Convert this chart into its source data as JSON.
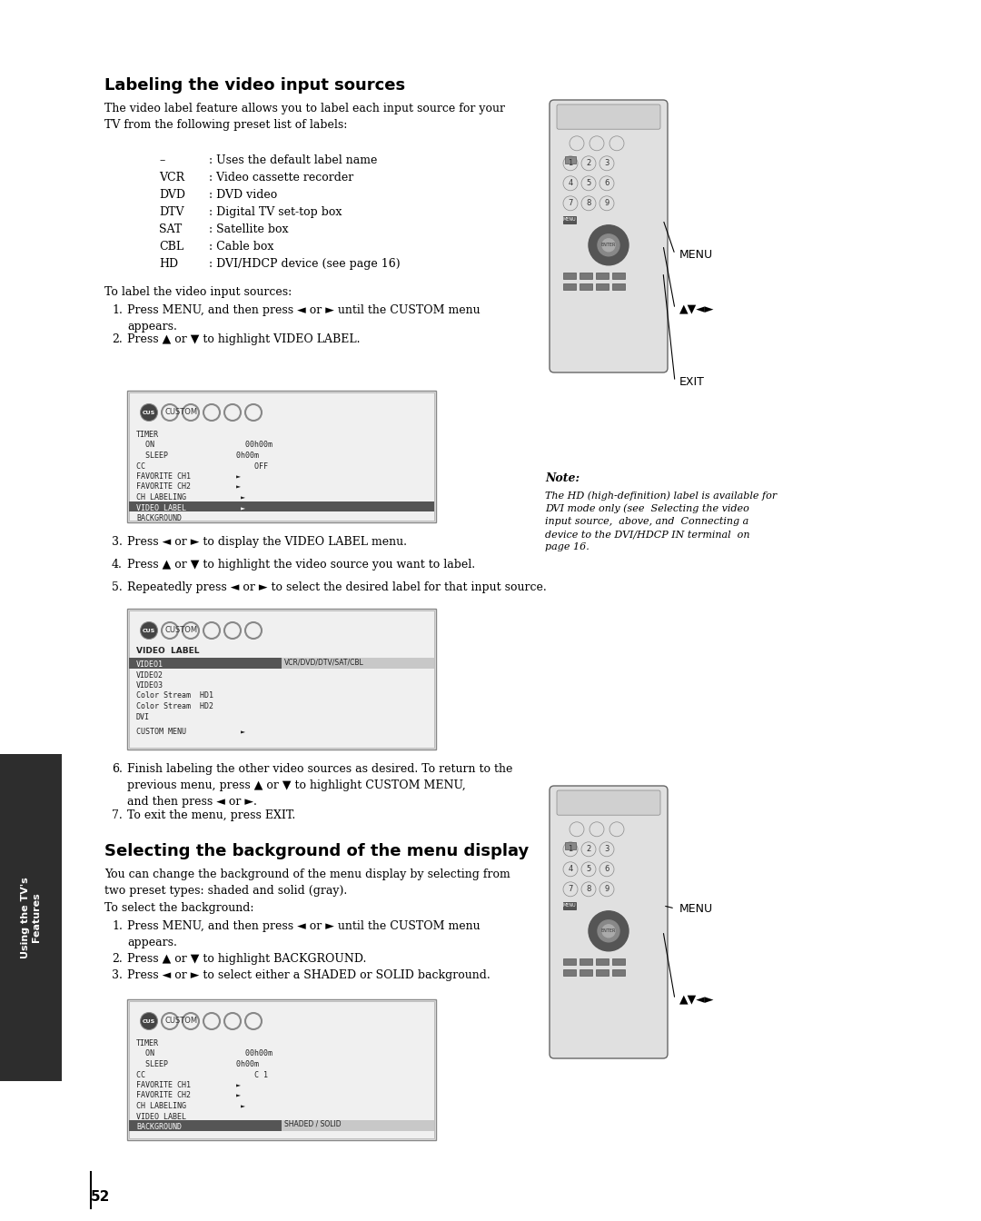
{
  "page_bg": "#ffffff",
  "page_number": "52",
  "sidebar_bg": "#2d2d2d",
  "sidebar_text": "Using the TV's\nFeatures",
  "sidebar_text_color": "#ffffff",
  "section1_title": "Labeling the video input sources",
  "section1_intro": "The video label feature allows you to label each input source for your\nTV from the following preset list of labels:",
  "labels_list": [
    [
      "–",
      ": Uses the default label name"
    ],
    [
      "VCR",
      ": Video cassette recorder"
    ],
    [
      "DVD",
      ": DVD video"
    ],
    [
      "DTV",
      ": Digital TV set-top box"
    ],
    [
      "SAT",
      ": Satellite box"
    ],
    [
      "CBL",
      ": Cable box"
    ],
    [
      "HD",
      ": DVI/HDCP device (see page 16)"
    ]
  ],
  "steps1_intro": "To label the video input sources:",
  "steps1": [
    "Press MENU, and then press ◄ or ► until the CUSTOM menu\nappears.",
    "Press ▲ or ▼ to highlight VIDEO LABEL.",
    "Press ◄ or ► to display the VIDEO LABEL menu.",
    "Press ▲ or ▼ to highlight the video source you want to label.",
    "Repeatedly press ◄ or ► to select the desired label for that input source.",
    "Finish labeling the other video sources as desired. To return to the\nprevious menu, press ▲ or ▼ to highlight CUSTOM MENU,\nand then press ◄ or ►.",
    "To exit the menu, press EXIT."
  ],
  "note_title": "Note:",
  "note_text": "The HD (high-definition) label is available for\nDVI mode only (see  Selecting the video\ninput source,  above, and  Connecting a\ndevice to the DVI/HDCP IN terminal  on\npage 16.",
  "menu_screen1_title": "CUSTOM",
  "menu_screen1_lines": [
    "TIMER",
    "  ON                    00h00m",
    "  SLEEP               0h00m",
    "CC                        OFF",
    "FAVORITE CH1          ►",
    "FAVORITE CH2          ►",
    "CH LABELING            ►",
    "VIDEO LABEL            ►",
    "BACKGROUND"
  ],
  "menu_screen1_highlight": "VIDEO LABEL            ►",
  "menu_screen2_title": "CUSTOM",
  "menu_screen2_subtitle": "VIDEO  LABEL",
  "menu_screen2_lines": [
    "VIDEO1",
    "VIDEO2",
    "VIDEO3",
    "Color Stream  HD1",
    "Color Stream  HD2",
    "DVI",
    "",
    "CUSTOM MENU            ►"
  ],
  "menu_screen2_highlight": "VIDEO1",
  "menu_screen2_highlight2": "VCR/DVD/DTV/SAT/CBL",
  "menu_screen3_title": "CUSTOM",
  "menu_screen3_lines": [
    "TIMER",
    "  ON                    00h00m",
    "  SLEEP               0h00m",
    "CC                        C 1",
    "FAVORITE CH1          ►",
    "FAVORITE CH2          ►",
    "CH LABELING            ►",
    "VIDEO LABEL",
    "BACKGROUND"
  ],
  "menu_screen3_highlight": "BACKGROUND",
  "menu_screen3_highlight2": "SHADED / SOLID",
  "section2_title": "Selecting the background of the menu display",
  "section2_intro": "You can change the background of the menu display by selecting from\ntwo preset types: shaded and solid (gray).",
  "steps2_intro": "To select the background:",
  "steps2": [
    "Press MENU, and then press ◄ or ► until the CUSTOM menu\nappears.",
    "Press ▲ or ▼ to highlight BACKGROUND.",
    "Press ◄ or ► to select either a SHADED or SOLID background."
  ],
  "remote_menu_label": "MENU",
  "remote_arrows_label": "▲▼◄►",
  "remote_exit_label": "EXIT"
}
